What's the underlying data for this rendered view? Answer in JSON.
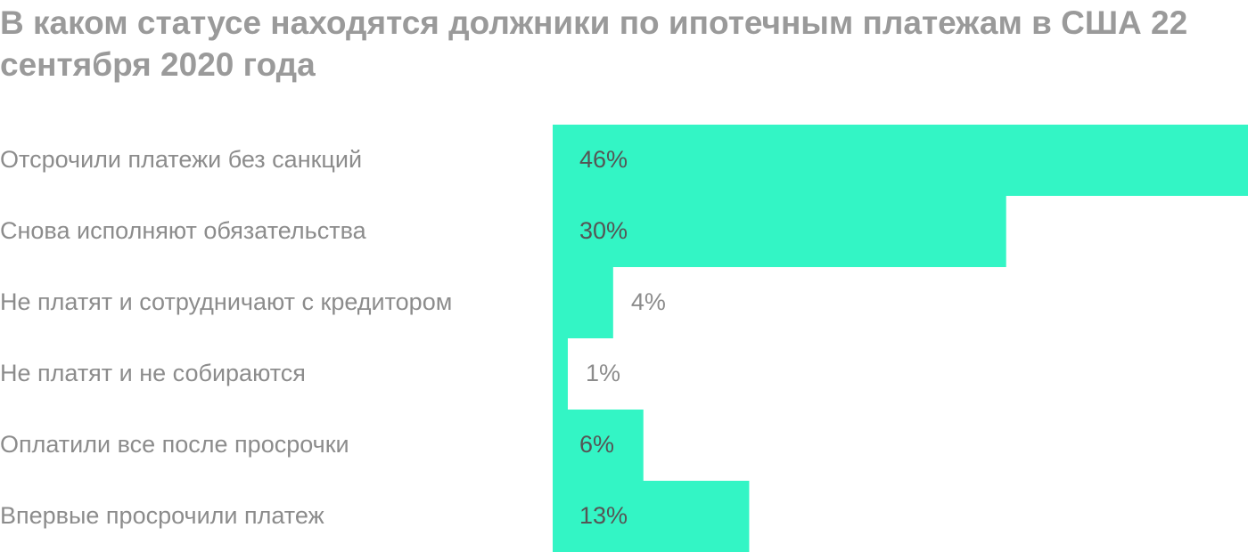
{
  "chart_data": {
    "type": "bar",
    "orientation": "horizontal",
    "title": "В каком статусе находятся должники по ипотечным платежам в США 22 сентября 2020 года",
    "categories": [
      "Отсрочили платежи без санкций",
      "Снова исполняют обязательства",
      "Не платят и сотрудничают с кредитором",
      "Не платят и не собираются",
      "Оплатили все после просрочки",
      "Впервые просрочили платеж"
    ],
    "values": [
      46,
      30,
      4,
      1,
      6,
      13
    ],
    "value_labels": [
      "46%",
      "30%",
      "4%",
      "1%",
      "6%",
      "13%"
    ],
    "color": "#33f5c5"
  }
}
